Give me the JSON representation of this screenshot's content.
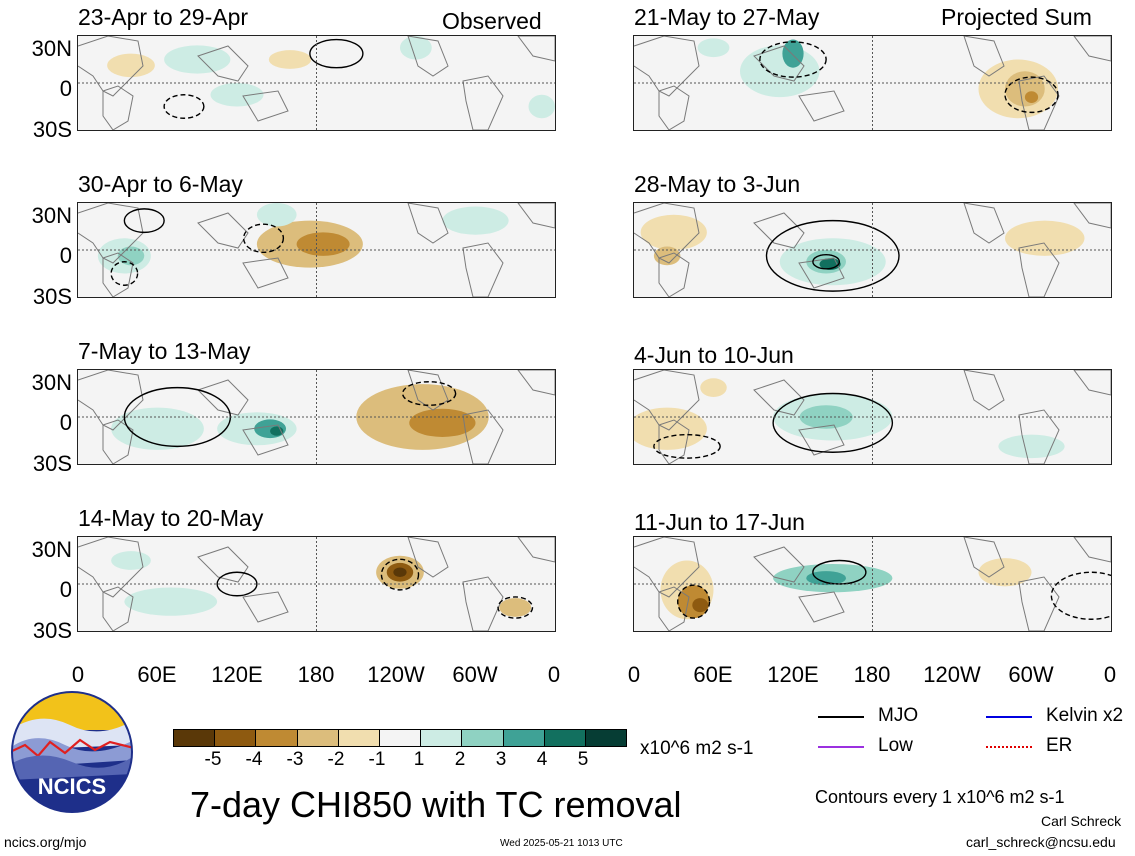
{
  "colors": {
    "scale": [
      "#5a3808",
      "#8e5a10",
      "#bf8a33",
      "#dcbd7c",
      "#f1deaf",
      "#f4f4f4",
      "#cdece4",
      "#8fd2c2",
      "#3fa296",
      "#12705f",
      "#063d34"
    ],
    "mjo": "#000000",
    "kelvin": "#0000e0",
    "low": "#9b30e0",
    "er": "#e00000",
    "land_outline": "#7a7a7a",
    "grid": "#555555",
    "frame": "#222222"
  },
  "left_column": {
    "tag": "Observed",
    "panels": [
      {
        "title": "23-Apr to 29-Apr"
      },
      {
        "title": "30-Apr to 6-May"
      },
      {
        "title": "7-May to 13-May"
      },
      {
        "title": "14-May to 20-May"
      }
    ]
  },
  "right_column": {
    "tag": "Projected Sum",
    "panels": [
      {
        "title": "21-May to 27-May"
      },
      {
        "title": "28-May to 3-Jun"
      },
      {
        "title": "4-Jun to 10-Jun"
      },
      {
        "title": "11-Jun to 17-Jun"
      }
    ]
  },
  "lat_ticks": [
    "30N",
    "0",
    "30S"
  ],
  "lon_ticks": [
    "0",
    "60E",
    "120E",
    "180",
    "120W",
    "60W",
    "0"
  ],
  "colorbar": {
    "labels": [
      "-5",
      "-4",
      "-3",
      "-2",
      "-1",
      "1",
      "2",
      "3",
      "4",
      "5"
    ],
    "units": "x10^6 m2 s-1"
  },
  "legend": {
    "mjo": "MJO",
    "kelvin": "Kelvin x2",
    "low": "Low",
    "er": "ER",
    "contours_note": "Contours every 1 x10^6 m2 s-1"
  },
  "main_title": "7-day CHI850 with TC removal",
  "logo": {
    "text": "NCICS"
  },
  "footer": {
    "url": "ncics.org/mjo",
    "timestamp": "Wed 2025-05-21 1013 UTC",
    "author": "Carl Schreck",
    "email": "carl_schreck@ncsu.edu"
  }
}
